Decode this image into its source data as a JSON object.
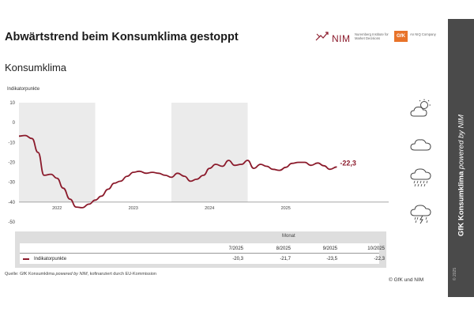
{
  "header": {
    "title": "Abwärtstrend beim Konsumklima gestoppt",
    "subtitle": "Konsumklima"
  },
  "logos": {
    "nim_name": "NIM",
    "nim_sub": "Nuremberg Institute for Market Decisions",
    "gfk_name": "GfK",
    "gfk_sub": "An NIQ Company"
  },
  "banner": {
    "brand": "GfK Konsumklima",
    "tagline": "powered by NIM",
    "year": "© 2025"
  },
  "icons": [
    "partly-sunny-icon",
    "cloud-icon",
    "rain-cloud-icon",
    "thunderstorm-icon"
  ],
  "chart_data": {
    "type": "line",
    "ylabel": "Indikatorpunkte",
    "ylim": [
      -50,
      10
    ],
    "yticks": [
      10,
      0,
      -10,
      -20,
      -30,
      -40,
      -50
    ],
    "xlim": [
      2021.0,
      2025.85
    ],
    "year_labels": [
      {
        "label": "2022",
        "x": 2021.5
      },
      {
        "label": "2023",
        "x": 2022.5
      },
      {
        "label": "2024",
        "x": 2023.5
      },
      {
        "label": "2025",
        "x": 2024.5
      }
    ],
    "shaded_years": [
      [
        2021.0,
        2022.0
      ],
      [
        2023.0,
        2024.0
      ]
    ],
    "grid": false,
    "series": [
      {
        "name": "Indikatorpunkte",
        "color": "#8b1a2b",
        "points": [
          [
            2021.0,
            -6.8
          ],
          [
            2021.08,
            -6.5
          ],
          [
            2021.17,
            -8.0
          ],
          [
            2021.25,
            -15.0
          ],
          [
            2021.33,
            -26.5
          ],
          [
            2021.42,
            -26.0
          ],
          [
            2021.5,
            -28.0
          ],
          [
            2021.58,
            -33.0
          ],
          [
            2021.67,
            -38.5
          ],
          [
            2021.75,
            -42.5
          ],
          [
            2021.83,
            -42.8
          ],
          [
            2021.92,
            -41.0
          ],
          [
            2022.0,
            -39.0
          ],
          [
            2022.08,
            -37.0
          ],
          [
            2022.17,
            -33.5
          ],
          [
            2022.25,
            -30.5
          ],
          [
            2022.33,
            -29.5
          ],
          [
            2022.42,
            -27.0
          ],
          [
            2022.5,
            -25.0
          ],
          [
            2022.58,
            -24.5
          ],
          [
            2022.67,
            -25.5
          ],
          [
            2022.75,
            -25.0
          ],
          [
            2022.83,
            -25.5
          ],
          [
            2022.92,
            -26.5
          ],
          [
            2023.0,
            -27.5
          ],
          [
            2023.08,
            -25.5
          ],
          [
            2023.17,
            -27.0
          ],
          [
            2023.25,
            -29.5
          ],
          [
            2023.33,
            -28.5
          ],
          [
            2023.42,
            -26.5
          ],
          [
            2023.5,
            -23.0
          ],
          [
            2023.58,
            -21.0
          ],
          [
            2023.67,
            -22.0
          ],
          [
            2023.75,
            -19.0
          ],
          [
            2023.83,
            -21.5
          ],
          [
            2023.92,
            -21.0
          ],
          [
            2024.0,
            -19.0
          ],
          [
            2024.08,
            -23.0
          ],
          [
            2024.17,
            -21.0
          ],
          [
            2024.25,
            -22.0
          ],
          [
            2024.33,
            -23.5
          ],
          [
            2024.42,
            -24.0
          ],
          [
            2024.5,
            -22.5
          ],
          [
            2024.58,
            -20.5
          ],
          [
            2024.67,
            -20.0
          ],
          [
            2024.75,
            -20.0
          ],
          [
            2024.83,
            -21.5
          ],
          [
            2024.92,
            -20.3
          ],
          [
            2025.0,
            -21.7
          ],
          [
            2025.08,
            -23.5
          ],
          [
            2025.17,
            -22.3
          ]
        ],
        "end_label": "-22,3"
      }
    ],
    "table": {
      "header_label": "Monat",
      "columns": [
        "7/2025",
        "8/2025",
        "9/2025",
        "10/2025"
      ],
      "series_label": "Indikatorpunkte",
      "values": [
        "-20,3",
        "-21,7",
        "-23,5",
        "-22,3"
      ]
    }
  },
  "footer": {
    "source_prefix": "Quelle: GfK Konsumklima ",
    "source_italic": "powered by NIM",
    "source_suffix": ", kofinanziert durch EU-Kommission",
    "copyright": "© GfK und NIM"
  }
}
